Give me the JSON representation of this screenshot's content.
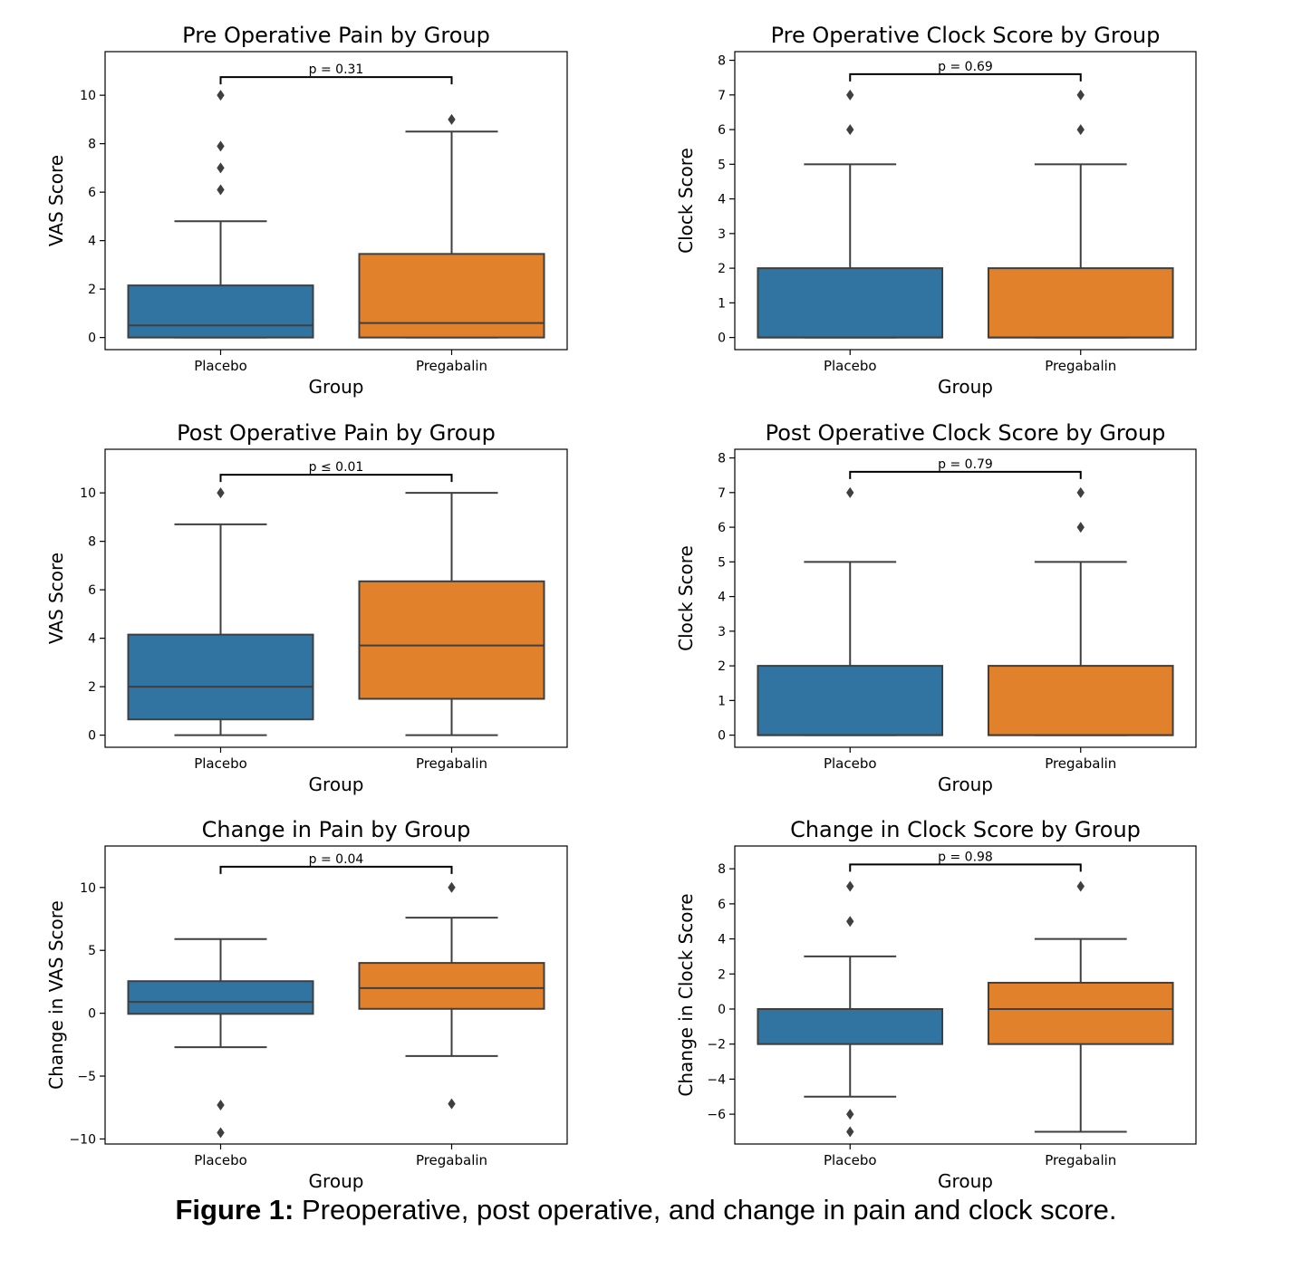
{
  "colors": {
    "placebo": "#3274a1",
    "pregabalin": "#e1812c",
    "line": "#3f3f3f"
  },
  "caption": {
    "label": "Figure 1:",
    "text": " Preoperative, post operative, and change in pain and clock score."
  },
  "chart_data": [
    {
      "type": "box",
      "title": "Pre Operative Pain by Group",
      "xlabel": "Group",
      "ylabel": "VAS Score",
      "categories": [
        "Placebo",
        "Pregabalin"
      ],
      "ylim": [
        -0.5,
        11.8
      ],
      "yticks": [
        0,
        2,
        4,
        6,
        8,
        10
      ],
      "boxes": [
        {
          "q1": 0,
          "median": 0.5,
          "q3": 2.15,
          "whisker_low": 0,
          "whisker_high": 4.8,
          "outliers": [
            6.1,
            7.0,
            7.9,
            10
          ]
        },
        {
          "q1": 0,
          "median": 0.6,
          "q3": 3.45,
          "whisker_low": 0,
          "whisker_high": 8.5,
          "outliers": [
            9.0
          ]
        }
      ],
      "annotation": {
        "text": "p = 0.31",
        "y": 10.75
      }
    },
    {
      "type": "box",
      "title": "Pre Operative Clock Score by Group",
      "xlabel": "Group",
      "ylabel": "Clock Score",
      "categories": [
        "Placebo",
        "Pregabalin"
      ],
      "ylim": [
        -0.35,
        8.25
      ],
      "yticks": [
        0,
        1,
        2,
        3,
        4,
        5,
        6,
        7,
        8
      ],
      "boxes": [
        {
          "q1": 0,
          "median": 0,
          "q3": 2,
          "whisker_low": 0,
          "whisker_high": 5,
          "outliers": [
            6,
            7
          ]
        },
        {
          "q1": 0,
          "median": 0,
          "q3": 2,
          "whisker_low": 0,
          "whisker_high": 5,
          "outliers": [
            6,
            7
          ]
        }
      ],
      "annotation": {
        "text": "p = 0.69",
        "y": 7.6
      }
    },
    {
      "type": "box",
      "title": "Post Operative Pain by Group",
      "xlabel": "Group",
      "ylabel": "VAS Score",
      "categories": [
        "Placebo",
        "Pregabalin"
      ],
      "ylim": [
        -0.5,
        11.8
      ],
      "yticks": [
        0,
        2,
        4,
        6,
        8,
        10
      ],
      "boxes": [
        {
          "q1": 0.65,
          "median": 2.0,
          "q3": 4.15,
          "whisker_low": 0,
          "whisker_high": 8.7,
          "outliers": [
            10
          ]
        },
        {
          "q1": 1.5,
          "median": 3.7,
          "q3": 6.35,
          "whisker_low": 0,
          "whisker_high": 10,
          "outliers": []
        }
      ],
      "annotation": {
        "text": "p ≤ 0.01",
        "y": 10.75
      }
    },
    {
      "type": "box",
      "title": "Post Operative Clock Score by Group",
      "xlabel": "Group",
      "ylabel": "Clock Score",
      "categories": [
        "Placebo",
        "Pregabalin"
      ],
      "ylim": [
        -0.35,
        8.25
      ],
      "yticks": [
        0,
        1,
        2,
        3,
        4,
        5,
        6,
        7,
        8
      ],
      "boxes": [
        {
          "q1": 0,
          "median": 0,
          "q3": 2,
          "whisker_low": 0,
          "whisker_high": 5,
          "outliers": [
            7
          ]
        },
        {
          "q1": 0,
          "median": 0,
          "q3": 2,
          "whisker_low": 0,
          "whisker_high": 5,
          "outliers": [
            6,
            7
          ]
        }
      ],
      "annotation": {
        "text": "p = 0.79",
        "y": 7.6
      }
    },
    {
      "type": "box",
      "title": "Change in Pain by Group",
      "xlabel": "Group",
      "ylabel": "Change in VAS Score",
      "categories": [
        "Placebo",
        "Pregabalin"
      ],
      "ylim": [
        -10.4,
        13.3
      ],
      "yticks": [
        -10,
        -5,
        0,
        5,
        10
      ],
      "ytick_labels": [
        "−10",
        "−5",
        "0",
        "5",
        "10"
      ],
      "boxes": [
        {
          "q1": -0.05,
          "median": 0.9,
          "q3": 2.55,
          "whisker_low": -2.7,
          "whisker_high": 5.9,
          "outliers": [
            -7.3,
            -9.5
          ]
        },
        {
          "q1": 0.35,
          "median": 2.0,
          "q3": 4.0,
          "whisker_low": -3.4,
          "whisker_high": 7.6,
          "outliers": [
            10,
            -7.2
          ]
        }
      ],
      "annotation": {
        "text": "p = 0.04",
        "y": 11.65
      }
    },
    {
      "type": "box",
      "title": "Change in Clock Score by Group",
      "xlabel": "Group",
      "ylabel": "Change in Clock Score",
      "categories": [
        "Placebo",
        "Pregabalin"
      ],
      "ylim": [
        -7.7,
        9.3
      ],
      "yticks": [
        -6,
        -4,
        -2,
        0,
        2,
        4,
        6,
        8
      ],
      "ytick_labels": [
        "−6",
        "−4",
        "−2",
        "0",
        "2",
        "4",
        "6",
        "8"
      ],
      "boxes": [
        {
          "q1": -2,
          "median": 0,
          "q3": 0,
          "whisker_low": -5,
          "whisker_high": 3,
          "outliers": [
            5,
            7,
            -6,
            -7
          ]
        },
        {
          "q1": -2,
          "median": 0,
          "q3": 1.5,
          "whisker_low": -7,
          "whisker_high": 4,
          "outliers": [
            7
          ]
        }
      ],
      "annotation": {
        "text": "p = 0.98",
        "y": 8.25
      }
    }
  ]
}
